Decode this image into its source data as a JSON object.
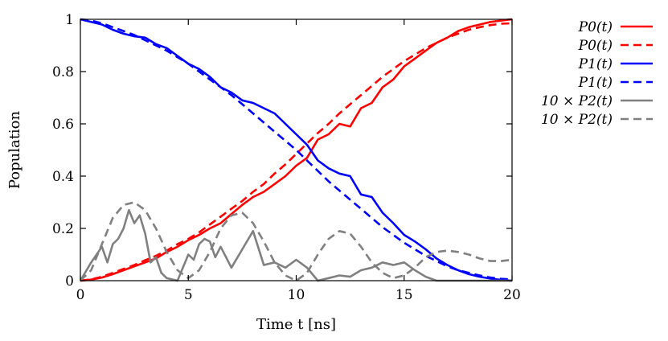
{
  "chart_data": {
    "type": "line",
    "title": "",
    "xlabel": "Time t [ns]",
    "ylabel": "Population",
    "xlim": [
      0,
      20
    ],
    "ylim": [
      0,
      1
    ],
    "xticks": [
      "0",
      "5",
      "10",
      "15",
      "20"
    ],
    "yticks": [
      "0",
      "0.2",
      "0.4",
      "0.6",
      "0.8",
      "1"
    ],
    "grid": false,
    "legend_position": "outside-right",
    "series": [
      {
        "name": "P0(t)",
        "color": "#ff0000",
        "style": "solid",
        "x": [
          0,
          0.5,
          1,
          1.5,
          2,
          2.5,
          3,
          3.5,
          4,
          4.5,
          5,
          5.5,
          6,
          6.5,
          7,
          7.5,
          8,
          8.5,
          9,
          9.5,
          10,
          10.5,
          11,
          11.5,
          12,
          12.5,
          13,
          13.5,
          14,
          14.5,
          15,
          15.5,
          16,
          16.5,
          17,
          17.5,
          18,
          18.5,
          19,
          19.5,
          20
        ],
        "y": [
          0.0,
          0.004,
          0.012,
          0.025,
          0.04,
          0.055,
          0.07,
          0.085,
          0.11,
          0.13,
          0.155,
          0.175,
          0.2,
          0.22,
          0.255,
          0.29,
          0.32,
          0.34,
          0.37,
          0.4,
          0.44,
          0.47,
          0.54,
          0.56,
          0.6,
          0.59,
          0.66,
          0.68,
          0.74,
          0.77,
          0.82,
          0.85,
          0.88,
          0.91,
          0.93,
          0.955,
          0.97,
          0.98,
          0.99,
          0.995,
          1.0
        ]
      },
      {
        "name": "P0(t)",
        "color": "#ff0000",
        "style": "dashed",
        "x": [
          0,
          0.5,
          1,
          1.5,
          2,
          2.5,
          3,
          3.5,
          4,
          4.5,
          5,
          5.5,
          6,
          6.5,
          7,
          7.5,
          8,
          8.5,
          9,
          9.5,
          10,
          10.5,
          11,
          11.5,
          12,
          12.5,
          13,
          13.5,
          14,
          14.5,
          15,
          15.5,
          16,
          16.5,
          17,
          17.5,
          18,
          18.5,
          19,
          19.5,
          20
        ],
        "y": [
          0.0,
          0.005,
          0.015,
          0.03,
          0.045,
          0.06,
          0.078,
          0.095,
          0.115,
          0.14,
          0.16,
          0.185,
          0.215,
          0.245,
          0.275,
          0.305,
          0.34,
          0.37,
          0.41,
          0.445,
          0.485,
          0.525,
          0.565,
          0.6,
          0.64,
          0.675,
          0.71,
          0.745,
          0.78,
          0.81,
          0.84,
          0.865,
          0.89,
          0.91,
          0.93,
          0.945,
          0.96,
          0.97,
          0.978,
          0.983,
          0.985
        ]
      },
      {
        "name": "P1(t)",
        "color": "#0000ff",
        "style": "solid",
        "x": [
          0,
          0.5,
          1,
          1.5,
          2,
          2.5,
          3,
          3.5,
          4,
          4.5,
          5,
          5.5,
          6,
          6.5,
          7,
          7.5,
          8,
          8.5,
          9,
          9.5,
          10,
          10.5,
          11,
          11.5,
          12,
          12.5,
          13,
          13.5,
          14,
          14.5,
          15,
          15.5,
          16,
          16.5,
          17,
          17.5,
          18,
          18.5,
          19,
          19.5,
          20
        ],
        "y": [
          1.0,
          0.99,
          0.98,
          0.96,
          0.945,
          0.935,
          0.93,
          0.905,
          0.89,
          0.86,
          0.83,
          0.81,
          0.78,
          0.74,
          0.72,
          0.69,
          0.68,
          0.66,
          0.64,
          0.6,
          0.56,
          0.52,
          0.46,
          0.43,
          0.41,
          0.4,
          0.33,
          0.32,
          0.26,
          0.22,
          0.175,
          0.15,
          0.12,
          0.085,
          0.06,
          0.04,
          0.025,
          0.015,
          0.008,
          0.003,
          0.0
        ]
      },
      {
        "name": "P1(t)",
        "color": "#0000ff",
        "style": "dashed",
        "x": [
          0,
          0.5,
          1,
          1.5,
          2,
          2.5,
          3,
          3.5,
          4,
          4.5,
          5,
          5.5,
          6,
          6.5,
          7,
          7.5,
          8,
          8.5,
          9,
          9.5,
          10,
          10.5,
          11,
          11.5,
          12,
          12.5,
          13,
          13.5,
          14,
          14.5,
          15,
          15.5,
          16,
          16.5,
          17,
          17.5,
          18,
          18.5,
          19,
          19.5,
          20
        ],
        "y": [
          1.0,
          0.995,
          0.985,
          0.97,
          0.955,
          0.94,
          0.92,
          0.9,
          0.88,
          0.855,
          0.83,
          0.8,
          0.77,
          0.74,
          0.71,
          0.675,
          0.64,
          0.605,
          0.57,
          0.535,
          0.5,
          0.46,
          0.42,
          0.38,
          0.345,
          0.31,
          0.275,
          0.24,
          0.205,
          0.175,
          0.145,
          0.12,
          0.095,
          0.075,
          0.055,
          0.04,
          0.03,
          0.02,
          0.012,
          0.007,
          0.005
        ]
      },
      {
        "name": "10×P2(t)",
        "color": "#808080",
        "style": "solid",
        "x": [
          0,
          0.5,
          1,
          1.25,
          1.5,
          1.75,
          2,
          2.25,
          2.5,
          2.75,
          3,
          3.25,
          3.5,
          3.75,
          4,
          4.5,
          5,
          5.25,
          5.5,
          5.75,
          6,
          6.25,
          6.5,
          7,
          7.5,
          8,
          8.5,
          9,
          9.5,
          10,
          10.5,
          11,
          11.5,
          12,
          12.5,
          13,
          13.5,
          14,
          14.5,
          15,
          15.5,
          16,
          16.5,
          17,
          17.5,
          18,
          18.5,
          19,
          19.5,
          20
        ],
        "y": [
          0.0,
          0.07,
          0.13,
          0.07,
          0.14,
          0.16,
          0.2,
          0.27,
          0.22,
          0.25,
          0.18,
          0.07,
          0.09,
          0.03,
          0.01,
          0.0,
          0.1,
          0.08,
          0.14,
          0.16,
          0.15,
          0.09,
          0.13,
          0.05,
          0.12,
          0.19,
          0.06,
          0.07,
          0.05,
          0.08,
          0.05,
          0.0,
          0.01,
          0.02,
          0.015,
          0.04,
          0.05,
          0.07,
          0.06,
          0.07,
          0.04,
          0.015,
          0.0,
          0.0,
          0.0,
          0.0,
          0.0,
          0.0,
          0.0,
          0.0
        ]
      },
      {
        "name": "10×P2(t)",
        "color": "#808080",
        "style": "dashed",
        "x": [
          0,
          0.5,
          1,
          1.5,
          2,
          2.5,
          3,
          3.5,
          4,
          4.5,
          5,
          5.5,
          6,
          6.5,
          7,
          7.5,
          8,
          8.5,
          9,
          9.5,
          10,
          10.5,
          11,
          11.5,
          12,
          12.5,
          13,
          13.5,
          14,
          14.5,
          15,
          15.5,
          16,
          16.5,
          17,
          17.5,
          18,
          18.5,
          19,
          19.5,
          20
        ],
        "y": [
          0.0,
          0.04,
          0.14,
          0.24,
          0.29,
          0.3,
          0.27,
          0.2,
          0.11,
          0.04,
          0.01,
          0.04,
          0.11,
          0.2,
          0.25,
          0.26,
          0.22,
          0.15,
          0.07,
          0.02,
          0.0,
          0.03,
          0.1,
          0.16,
          0.19,
          0.18,
          0.13,
          0.07,
          0.03,
          0.01,
          0.02,
          0.05,
          0.09,
          0.11,
          0.115,
          0.11,
          0.1,
          0.085,
          0.075,
          0.075,
          0.08
        ]
      }
    ],
    "legend": [
      {
        "text": "P0(t)",
        "series": 0
      },
      {
        "text": "P0(t)",
        "series": 1
      },
      {
        "text": "P1(t)",
        "series": 2
      },
      {
        "text": "P1(t)",
        "series": 3
      },
      {
        "text": "10 × P2(t)",
        "series": 4
      },
      {
        "text": "10 × P2(t)",
        "series": 5
      }
    ]
  }
}
